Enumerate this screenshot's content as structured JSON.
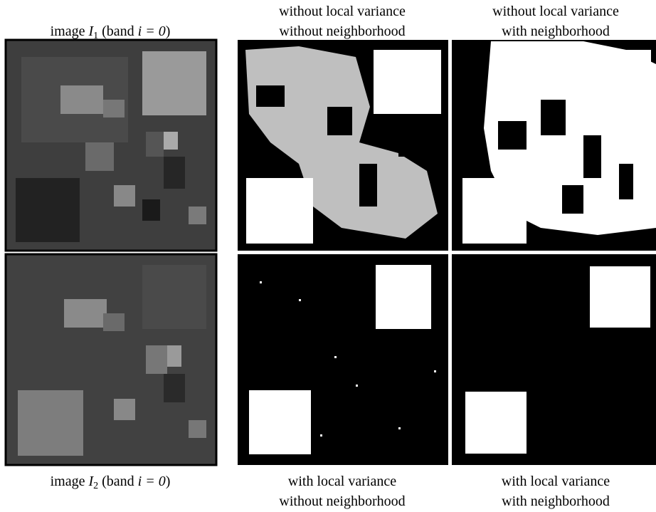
{
  "captions": {
    "image_1": {
      "prefix": "image ",
      "symbol": "I",
      "subscript": "1",
      "middle": " (band ",
      "math": "i = 0",
      "suffix": ")"
    },
    "image_2": {
      "prefix": "image ",
      "symbol": "I",
      "subscript": "2",
      "middle": " (band ",
      "math": "i = 0",
      "suffix": ")"
    },
    "top_middle": [
      "without local variance",
      "without neighborhood"
    ],
    "top_right": [
      "without local variance",
      "with neighborhood"
    ],
    "bottom_middle": [
      "with local variance",
      "without neighborhood"
    ],
    "bottom_right": [
      "with local variance",
      "with neighborhood"
    ]
  }
}
